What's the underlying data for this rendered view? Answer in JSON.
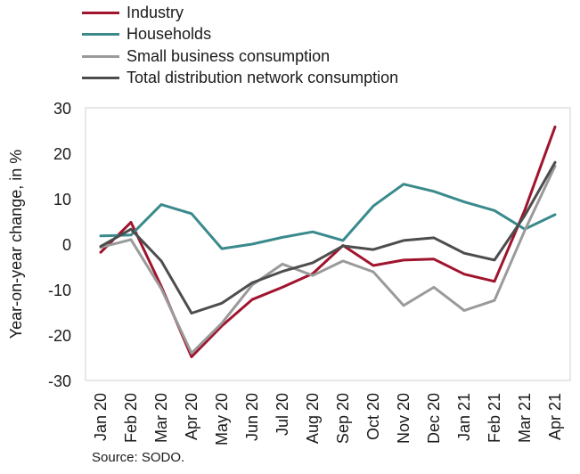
{
  "chart_data": {
    "type": "line",
    "title": "",
    "ylabel": "Year-on-year change, in %",
    "xlabel": "",
    "ylim": [
      -30,
      30
    ],
    "yticks": [
      30,
      20,
      10,
      0,
      -10,
      -20,
      -30
    ],
    "grid": false,
    "legend_position": "top-left",
    "categories": [
      "Jan 20",
      "Feb 20",
      "Mar 20",
      "Apr 20",
      "May 20",
      "Jun 20",
      "Jul 20",
      "Aug 20",
      "Sep 20",
      "Oct 20",
      "Nov 20",
      "Dec 20",
      "Jan 21",
      "Feb 21",
      "Mar 21",
      "Apr 21"
    ],
    "series": [
      {
        "name": "Industry",
        "color": "#a0142e",
        "values": [
          -1.8,
          4.8,
          -9.3,
          -24.8,
          -18.0,
          -12.2,
          -9.5,
          -6.5,
          -0.3,
          -4.7,
          -3.5,
          -3.3,
          -6.6,
          -8.2,
          7.5,
          25.8
        ]
      },
      {
        "name": "Households",
        "color": "#3a8a8c",
        "values": [
          1.8,
          2.0,
          8.7,
          6.7,
          -1.0,
          0.0,
          1.5,
          2.7,
          0.8,
          8.4,
          13.2,
          11.6,
          9.3,
          7.4,
          3.3,
          6.5
        ]
      },
      {
        "name": "Small business consumption",
        "color": "#9a9a9a",
        "values": [
          -0.7,
          1.0,
          -9.8,
          -24.0,
          -17.4,
          -9.0,
          -4.4,
          -6.9,
          -3.7,
          -6.1,
          -13.5,
          -9.5,
          -14.6,
          -12.4,
          3.0,
          17.2
        ]
      },
      {
        "name": "Total distribution network consumption",
        "color": "#4d4d4d",
        "values": [
          -0.5,
          3.3,
          -3.7,
          -15.2,
          -13.0,
          -8.5,
          -6.0,
          -4.1,
          -0.4,
          -1.2,
          0.8,
          1.4,
          -2.0,
          -3.5,
          6.3,
          18.0
        ]
      }
    ],
    "source": "Source: SODO."
  }
}
